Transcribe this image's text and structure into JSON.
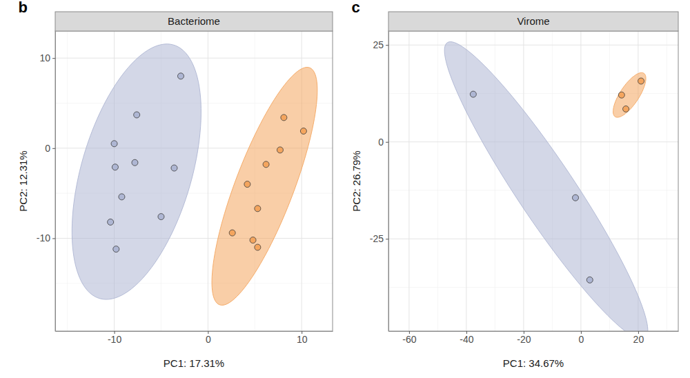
{
  "chart_data": [
    {
      "type": "scatter",
      "title": "Bacteriome",
      "annotations": [
        "b"
      ],
      "x_label": "PC1: 17.31%",
      "y_label": "PC2: 12.31%",
      "xlim": [
        -16.3,
        13.3
      ],
      "ylim": [
        -20.3,
        13.0
      ],
      "xticks": [
        -10,
        0,
        10
      ],
      "yticks": [
        -10,
        0,
        10
      ],
      "grid": true,
      "series": [
        {
          "color": "#aeb6d3",
          "x": [
            -2.9,
            -7.6,
            -10.0,
            -9.9,
            -7.8,
            -3.6,
            -9.2,
            -5.0,
            -10.4,
            -9.8
          ],
          "values": [
            8.0,
            3.7,
            0.5,
            -2.1,
            -1.6,
            -2.2,
            -5.4,
            -7.6,
            -8.2,
            -11.2
          ]
        },
        {
          "color": "#f4a55e",
          "x": [
            8.1,
            10.2,
            7.7,
            6.2,
            4.2,
            5.3,
            2.6,
            4.8,
            5.3
          ],
          "values": [
            3.4,
            1.9,
            -0.2,
            -1.8,
            -4.0,
            -6.7,
            -9.4,
            -10.2,
            -11.0
          ]
        }
      ]
    },
    {
      "type": "scatter",
      "title": "Virome",
      "annotations": [
        "c"
      ],
      "x_label": "PC1: 34.67%",
      "y_label": "PC2: 26.79%",
      "xlim": [
        -67.2,
        34.0
      ],
      "ylim": [
        -48.8,
        28.6
      ],
      "xticks": [
        -60,
        -40,
        -20,
        0,
        20
      ],
      "yticks": [
        -25,
        0,
        25
      ],
      "grid": true,
      "series": [
        {
          "color": "#aeb6d3",
          "x": [
            -37.6,
            -1.9,
            3.1
          ],
          "values": [
            12.3,
            -14.4,
            -35.6
          ]
        },
        {
          "color": "#f4a55e",
          "x": [
            14.2,
            15.7,
            21.0
          ],
          "values": [
            12.1,
            8.5,
            15.7
          ]
        }
      ]
    }
  ]
}
